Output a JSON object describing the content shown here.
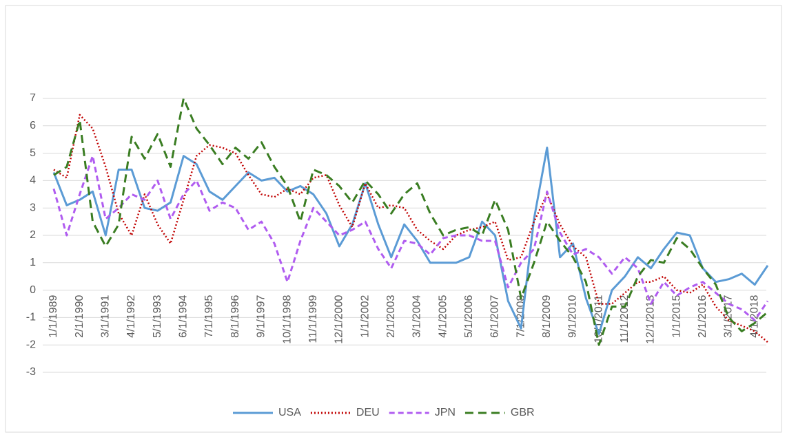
{
  "chart_data": {
    "type": "line",
    "categories": [
      "1/1/1989",
      null,
      "2/1/1990",
      null,
      "3/1/1991",
      null,
      "4/1/1992",
      null,
      "5/1/1993",
      null,
      "6/1/1994",
      null,
      "7/1/1995",
      null,
      "8/1/1996",
      null,
      "9/1/1997",
      null,
      "10/1/1998",
      null,
      "11/1/1999",
      null,
      "12/1/2000",
      null,
      "1/1/2002",
      null,
      "2/1/2003",
      null,
      "3/1/2004",
      null,
      "4/1/2005",
      null,
      "5/1/2006",
      null,
      "6/1/2007",
      null,
      "7/1/2008",
      null,
      "8/1/2009",
      null,
      "9/1/2010",
      null,
      "10/1/2011",
      null,
      "11/1/2012",
      null,
      "12/1/2013",
      null,
      "1/1/2015",
      null,
      "2/1/2016",
      null,
      "3/1/2017",
      null,
      "4/1/2018",
      null
    ],
    "series": [
      {
        "name": "USA",
        "color": "#5b9bd5",
        "dash": "solid",
        "values": [
          4.3,
          3.1,
          3.3,
          3.6,
          2.0,
          4.4,
          4.4,
          3.0,
          2.9,
          3.2,
          4.9,
          4.6,
          3.6,
          3.3,
          3.8,
          4.3,
          4.0,
          4.1,
          3.6,
          3.8,
          3.5,
          2.8,
          1.6,
          2.4,
          3.9,
          2.4,
          1.2,
          2.4,
          1.8,
          1.0,
          1.0,
          1.0,
          1.2,
          2.5,
          2.0,
          -0.4,
          -1.4,
          2.6,
          5.2,
          1.2,
          1.7,
          -0.3,
          -1.6,
          0.0,
          0.5,
          1.2,
          0.8,
          1.5,
          2.1,
          2.0,
          0.8,
          0.3,
          0.4,
          0.6,
          0.2,
          0.9
        ]
      },
      {
        "name": "DEU",
        "color": "#c00000",
        "dash": "dotted",
        "values": [
          4.4,
          4.1,
          6.4,
          5.9,
          4.5,
          2.8,
          2.0,
          3.5,
          2.4,
          1.7,
          3.3,
          4.9,
          5.3,
          5.2,
          5.0,
          4.2,
          3.5,
          3.4,
          3.7,
          3.5,
          4.1,
          4.2,
          3.1,
          2.3,
          3.9,
          3.0,
          3.1,
          3.0,
          2.2,
          1.8,
          1.5,
          2.0,
          2.2,
          2.3,
          2.5,
          1.1,
          1.2,
          2.5,
          3.5,
          2.4,
          1.6,
          1.2,
          -0.5,
          -0.5,
          -0.1,
          0.3,
          0.3,
          0.5,
          0.0,
          -0.1,
          0.2,
          -0.6,
          -1.1,
          -1.3,
          -1.5,
          -1.9
        ]
      },
      {
        "name": "JPN",
        "color": "#b05cf0",
        "dash": "dashed",
        "values": [
          3.7,
          2.0,
          3.5,
          4.9,
          2.6,
          3.0,
          3.5,
          3.3,
          4.0,
          2.6,
          3.5,
          4.0,
          2.9,
          3.2,
          3.0,
          2.2,
          2.5,
          1.7,
          0.3,
          1.8,
          3.0,
          2.5,
          2.0,
          2.2,
          2.5,
          1.5,
          0.8,
          1.8,
          1.7,
          1.3,
          1.9,
          2.0,
          2.0,
          1.8,
          1.8,
          0.1,
          1.0,
          1.5,
          3.6,
          2.1,
          1.3,
          1.5,
          1.2,
          0.6,
          1.2,
          0.8,
          -0.5,
          0.3,
          -0.2,
          0.1,
          0.3,
          -0.1,
          -0.5,
          -0.7,
          -1.1,
          -0.4
        ]
      },
      {
        "name": "GBR",
        "color": "#3a7d22",
        "dash": "long-dashed",
        "values": [
          4.2,
          4.5,
          6.2,
          2.5,
          1.6,
          2.4,
          5.6,
          4.8,
          5.7,
          4.5,
          7.0,
          5.9,
          5.3,
          4.6,
          5.2,
          4.8,
          5.4,
          4.5,
          3.8,
          2.5,
          4.4,
          4.2,
          3.8,
          3.2,
          4.0,
          3.5,
          2.8,
          3.5,
          3.9,
          2.8,
          2.0,
          2.2,
          2.3,
          2.0,
          3.3,
          2.2,
          -0.3,
          1.0,
          2.5,
          1.8,
          1.2,
          0.3,
          -2.0,
          -0.6,
          -0.6,
          0.5,
          1.1,
          1.0,
          1.9,
          1.5,
          0.8,
          0.2,
          -1.0,
          -1.5,
          -1.2,
          -0.8
        ]
      }
    ],
    "ylim": [
      -3,
      7
    ],
    "yticks": [
      -3,
      -2,
      -1,
      0,
      1,
      2,
      3,
      4,
      5,
      6,
      7
    ],
    "grid": true,
    "legend": "bottom"
  }
}
